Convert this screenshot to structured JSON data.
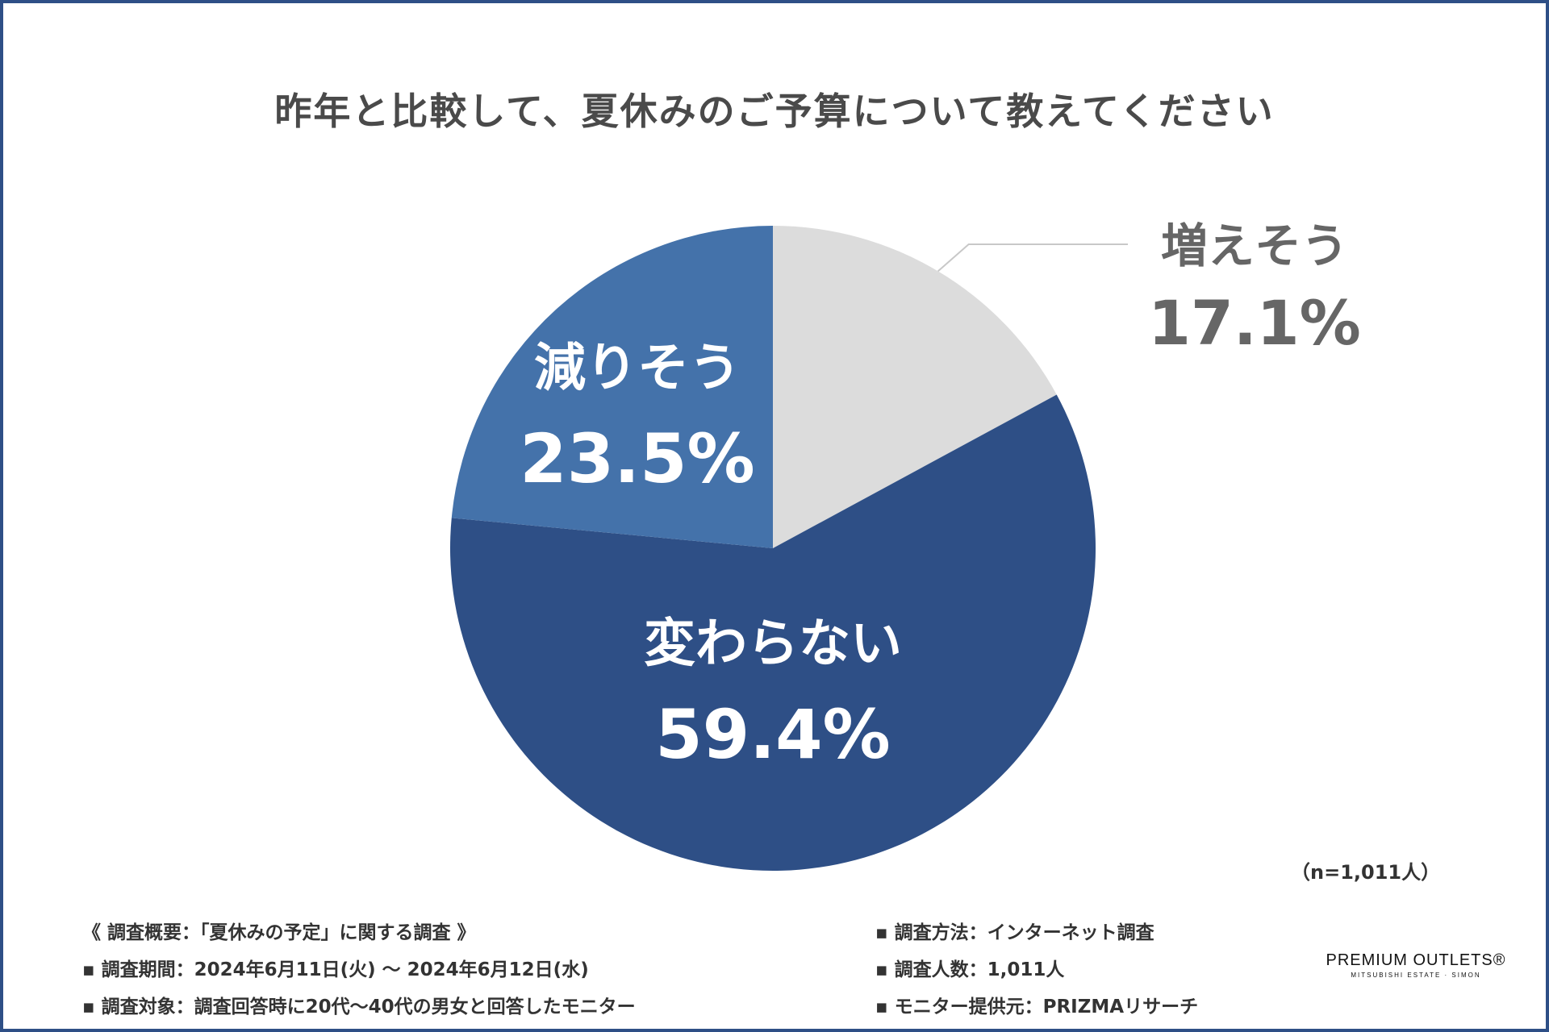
{
  "chart_data": {
    "type": "pie",
    "title": "昨年と比較して、夏休みのご予算について教えてください",
    "slices": [
      {
        "label": "増えそう",
        "value": 17.1,
        "display": "17.1%",
        "color": "#dcdcdc",
        "text_color": "#666666"
      },
      {
        "label": "変わらない",
        "value": 59.4,
        "display": "59.4%",
        "color": "#2e4f86",
        "text_color": "#ffffff"
      },
      {
        "label": "減りそう",
        "value": 23.5,
        "display": "23.5%",
        "color": "#4472aa",
        "text_color": "#ffffff"
      }
    ],
    "start": "12 o'clock",
    "direction": "clockwise",
    "sample_note": "（n=1,011人）"
  },
  "survey": {
    "left": [
      "《 調査概要：「夏休みの予定」に関する調査 》",
      "▪ 調査期間：2024年6月11日(火) 〜 2024年6月12日(水)",
      "▪ 調査対象：調査回答時に20代〜40代の男女と回答したモニター"
    ],
    "right": [
      "▪ 調査方法：インターネット調査",
      "▪ 調査人数：1,011人",
      "▪ モニター提供元：PRIZMAリサーチ"
    ]
  },
  "logo": {
    "main": "PREMIUM OUTLETS®",
    "sub": "MITSUBISHI ESTATE · SIMON"
  },
  "colors": {
    "border": "#2e4f86",
    "title": "#4a4a4a"
  }
}
